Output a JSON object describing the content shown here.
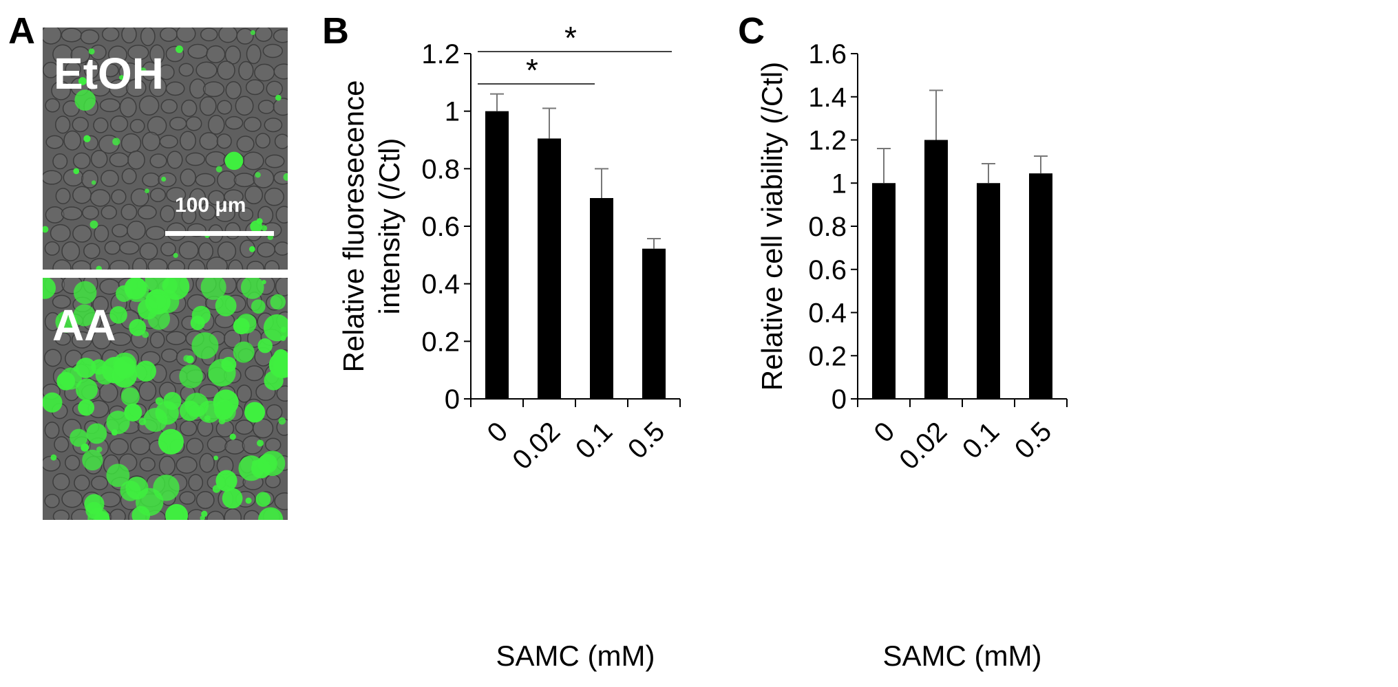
{
  "panels": {
    "a": {
      "letter": "A",
      "top_label": "EtOH",
      "bottom_label": "AA",
      "scale_text": "100 μm",
      "colors": {
        "background": "#5f5f5f",
        "cell_outline": "#3d3d3d",
        "fluorescence": "#3ff03f"
      }
    },
    "b": {
      "letter": "B"
    },
    "c": {
      "letter": "C"
    }
  },
  "chart_data": [
    {
      "type": "bar",
      "panel": "B",
      "categories": [
        "0",
        "0.02",
        "0.1",
        "0.5"
      ],
      "values": [
        1.0,
        0.905,
        0.698,
        0.522
      ],
      "errors": [
        0.06,
        0.105,
        0.102,
        0.035
      ],
      "ylabel_lines": [
        "Relative fluoresecence",
        "intensity (/Ctl)"
      ],
      "xlabel": "SAMC (mM)",
      "ylim": [
        0,
        1.2
      ],
      "yticks": [
        "0",
        "0.2",
        "0.4",
        "0.6",
        "0.8",
        "1",
        "1.2"
      ],
      "significance": [
        {
          "from": 0,
          "to": 2,
          "label": "*"
        },
        {
          "from": 0,
          "to": 3,
          "label": "*"
        }
      ],
      "bar_color": "#000000"
    },
    {
      "type": "bar",
      "panel": "C",
      "categories": [
        "0",
        "0.02",
        "0.1",
        "0.5"
      ],
      "values": [
        1.0,
        1.2,
        1.0,
        1.045
      ],
      "errors": [
        0.16,
        0.23,
        0.09,
        0.08
      ],
      "ylabel_lines": [
        "Relative cell viability (/Ctl)"
      ],
      "xlabel": "SAMC (mM)",
      "ylim": [
        0,
        1.6
      ],
      "yticks": [
        "0",
        "0.2",
        "0.4",
        "0.6",
        "0.8",
        "1",
        "1.2",
        "1.4",
        "1.6"
      ],
      "significance": [],
      "bar_color": "#000000"
    }
  ]
}
